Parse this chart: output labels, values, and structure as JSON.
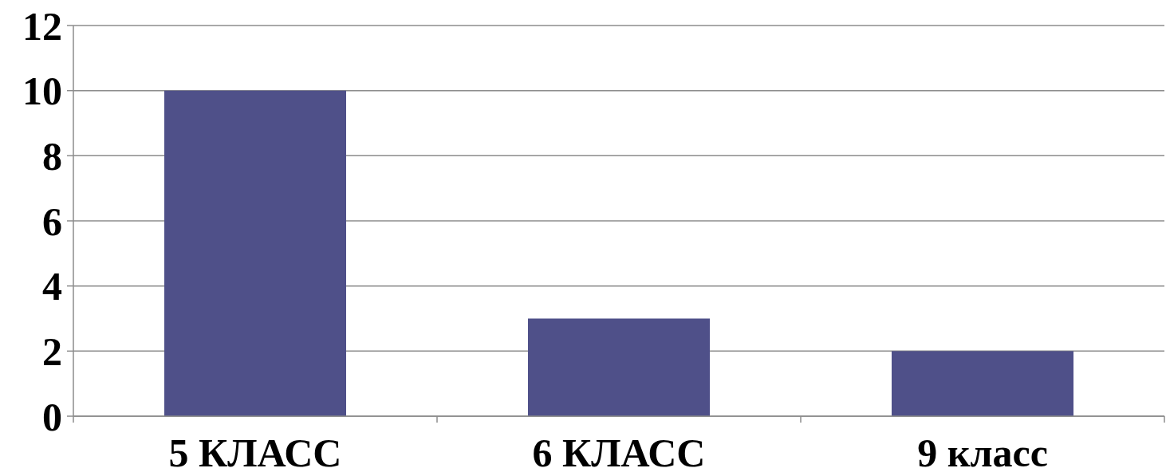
{
  "chart_data": {
    "type": "bar",
    "categories": [
      "5 КЛАСС",
      "6 КЛАСС",
      "9 класс"
    ],
    "values": [
      10,
      3,
      2
    ],
    "color": "#4f5089",
    "ylim": [
      0,
      12
    ],
    "yticks": [
      0,
      2,
      4,
      6,
      8,
      10,
      12
    ],
    "grid": "y"
  }
}
